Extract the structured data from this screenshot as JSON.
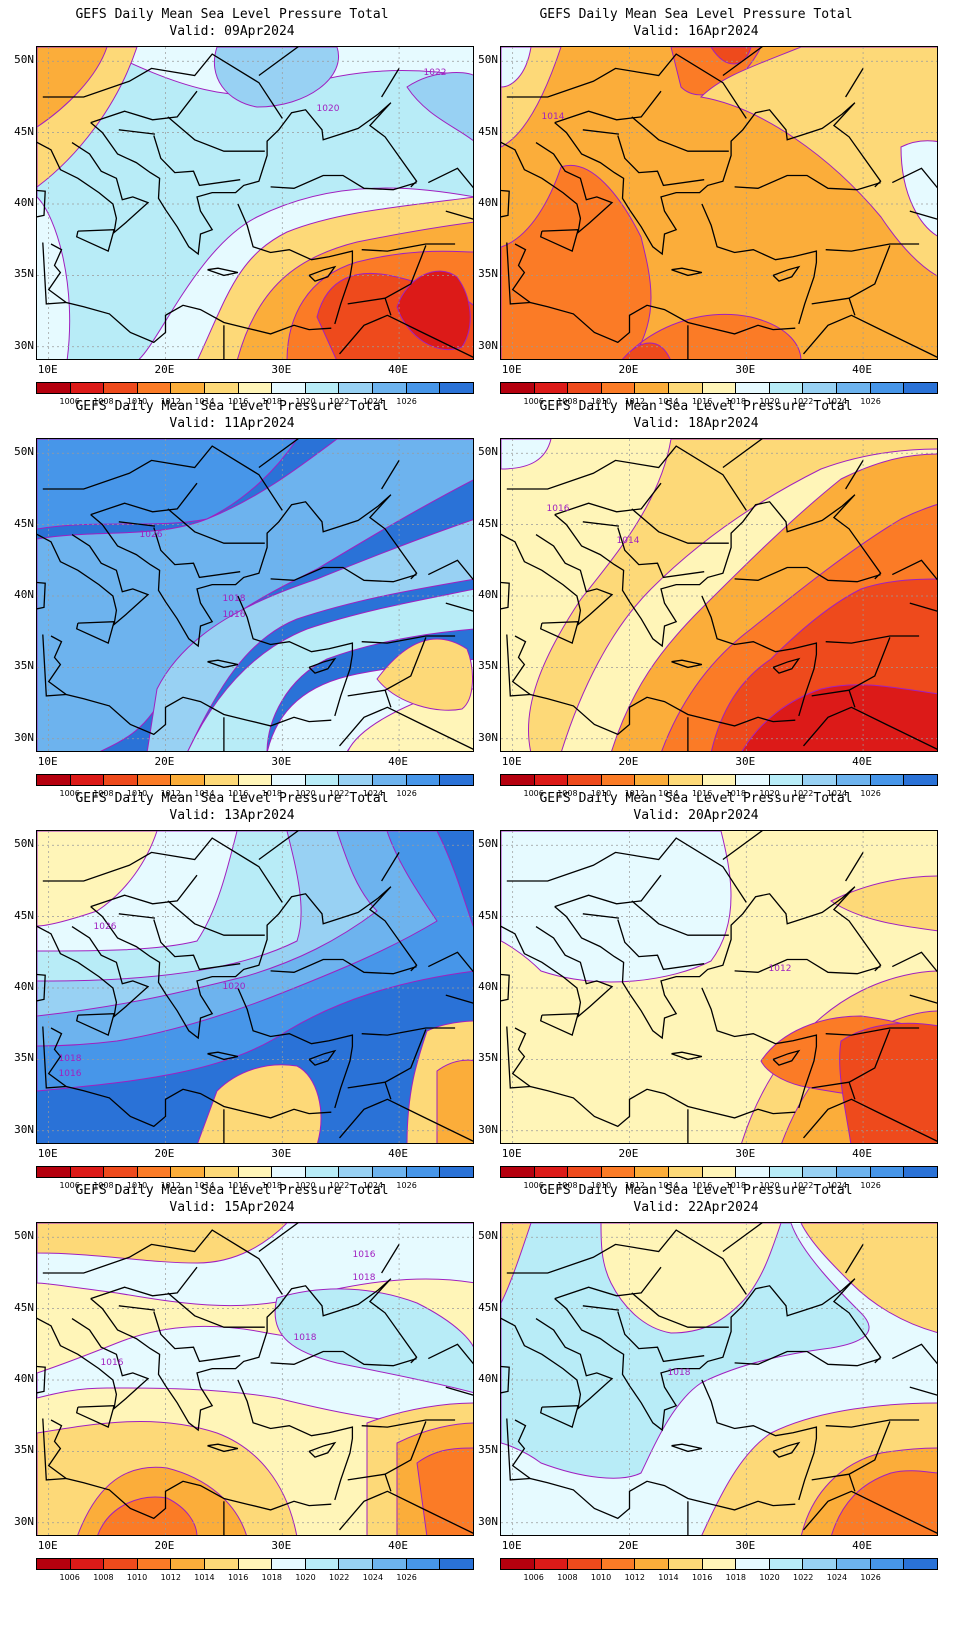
{
  "legend": {
    "labels": [
      "1006",
      "1008",
      "1010",
      "1012",
      "1014",
      "1016",
      "1018",
      "1020",
      "1022",
      "1024",
      "1026"
    ],
    "colors": [
      "#b5000e",
      "#dc1a18",
      "#ee4a1c",
      "#fb7b26",
      "#fbad3a",
      "#fdd978",
      "#fff5b8",
      "#e6faff",
      "#b8ecf7",
      "#98d1f3",
      "#6db3ee",
      "#4796e9",
      "#2a72d7"
    ]
  },
  "axes": {
    "lat_labels": [
      "50N",
      "45N",
      "40N",
      "35N",
      "30N"
    ],
    "lon_labels": [
      "10E",
      "20E",
      "30E",
      "40E"
    ]
  },
  "panels": [
    {
      "id": "p1",
      "title": "GEFS Daily Mean Sea Level Pressure Total",
      "valid": "Valid: 09Apr2024",
      "contour_labels": [
        {
          "text": "1022"
        },
        {
          "text": "1020"
        }
      ],
      "regions": [
        {
          "level": "1016",
          "color": "#e6faff"
        },
        {
          "level": "1018",
          "color": "#b8ecf7"
        },
        {
          "level": "1020",
          "color": "#98d1f3"
        },
        {
          "level": "1014",
          "color": "#fdd978"
        },
        {
          "level": "1012",
          "color": "#fbad3a"
        },
        {
          "level": "1010",
          "color": "#fb7b26"
        },
        {
          "level": "1008",
          "color": "#ee4a1c"
        },
        {
          "level": "1006",
          "color": "#dc1a18"
        }
      ]
    },
    {
      "id": "p2",
      "title": "GEFS Daily Mean Sea Level Pressure Total",
      "valid": "Valid: 16Apr2024",
      "contour_labels": [
        {
          "text": "1014"
        }
      ],
      "regions": [
        {
          "level": "1012",
          "color": "#fbad3a"
        },
        {
          "level": "1010",
          "color": "#fb7b26"
        },
        {
          "level": "1008",
          "color": "#ee4a1c"
        },
        {
          "level": "1014",
          "color": "#fdd978"
        },
        {
          "level": "1016",
          "color": "#e6faff"
        }
      ]
    },
    {
      "id": "p3",
      "title": "GEFS Daily Mean Sea Level Pressure Total",
      "valid": "Valid: 11Apr2024",
      "contour_labels": [
        {
          "text": "1026"
        },
        {
          "text": "1018"
        },
        {
          "text": "1016"
        }
      ],
      "regions": [
        {
          "level": "1026",
          "color": "#2a72d7"
        },
        {
          "level": "1024",
          "color": "#4796e9"
        },
        {
          "level": "1022",
          "color": "#6db3ee"
        },
        {
          "level": "1020",
          "color": "#98d1f3"
        },
        {
          "level": "1018",
          "color": "#b8ecf7"
        },
        {
          "level": "1016",
          "color": "#e6faff"
        },
        {
          "level": "1014",
          "color": "#fff5b8"
        },
        {
          "level": "1012",
          "color": "#fdd978"
        }
      ]
    },
    {
      "id": "p4",
      "title": "GEFS Daily Mean Sea Level Pressure Total",
      "valid": "Valid: 18Apr2024",
      "contour_labels": [
        {
          "text": "1016"
        },
        {
          "text": "1014"
        }
      ],
      "regions": [
        {
          "level": "1014",
          "color": "#fff5b8"
        },
        {
          "level": "1012",
          "color": "#fdd978"
        },
        {
          "level": "1010",
          "color": "#fbad3a"
        },
        {
          "level": "1008",
          "color": "#fb7b26"
        },
        {
          "level": "1006",
          "color": "#ee4a1c"
        },
        {
          "level": "1004",
          "color": "#dc1a18"
        },
        {
          "level": "1016",
          "color": "#e6faff"
        }
      ]
    },
    {
      "id": "p5",
      "title": "GEFS Daily Mean Sea Level Pressure Total",
      "valid": "Valid: 13Apr2024",
      "contour_labels": [
        {
          "text": "1026"
        },
        {
          "text": "1020"
        },
        {
          "text": "1018"
        },
        {
          "text": "1016"
        }
      ],
      "regions": [
        {
          "level": "1026",
          "color": "#2a72d7"
        },
        {
          "level": "1024",
          "color": "#4796e9"
        },
        {
          "level": "1022",
          "color": "#6db3ee"
        },
        {
          "level": "1020",
          "color": "#98d1f3"
        },
        {
          "level": "1018",
          "color": "#b8ecf7"
        },
        {
          "level": "1016",
          "color": "#e6faff"
        },
        {
          "level": "1014",
          "color": "#fff5b8"
        },
        {
          "level": "1012",
          "color": "#fdd978"
        },
        {
          "level": "1010",
          "color": "#fbad3a"
        }
      ]
    },
    {
      "id": "p6",
      "title": "GEFS Daily Mean Sea Level Pressure Total",
      "valid": "Valid: 20Apr2024",
      "contour_labels": [
        {
          "text": "1012"
        }
      ],
      "regions": [
        {
          "level": "1014",
          "color": "#fff5b8"
        },
        {
          "level": "1016",
          "color": "#e6faff"
        },
        {
          "level": "1012",
          "color": "#fdd978"
        },
        {
          "level": "1010",
          "color": "#fbad3a"
        },
        {
          "level": "1008",
          "color": "#fb7b26"
        },
        {
          "level": "1006",
          "color": "#ee4a1c"
        }
      ]
    },
    {
      "id": "p7",
      "title": "GEFS Daily Mean Sea Level Pressure Total",
      "valid": "Valid: 15Apr2024",
      "contour_labels": [
        {
          "text": "1016"
        },
        {
          "text": "1018"
        },
        {
          "text": "1018"
        },
        {
          "text": "1016"
        }
      ],
      "regions": [
        {
          "level": "1014",
          "color": "#fff5b8"
        },
        {
          "level": "1016",
          "color": "#e6faff"
        },
        {
          "level": "1018",
          "color": "#b8ecf7"
        },
        {
          "level": "1012",
          "color": "#fdd978"
        },
        {
          "level": "1010",
          "color": "#fbad3a"
        },
        {
          "level": "1008",
          "color": "#fb7b26"
        }
      ]
    },
    {
      "id": "p8",
      "title": "GEFS Daily Mean Sea Level Pressure Total",
      "valid": "Valid: 22Apr2024",
      "contour_labels": [
        {
          "text": "1018"
        }
      ],
      "regions": [
        {
          "level": "1016",
          "color": "#e6faff"
        },
        {
          "level": "1018",
          "color": "#b8ecf7"
        },
        {
          "level": "1014",
          "color": "#fff5b8"
        },
        {
          "level": "1012",
          "color": "#fdd978"
        },
        {
          "level": "1010",
          "color": "#fbad3a"
        },
        {
          "level": "1008",
          "color": "#fb7b26"
        }
      ]
    }
  ]
}
